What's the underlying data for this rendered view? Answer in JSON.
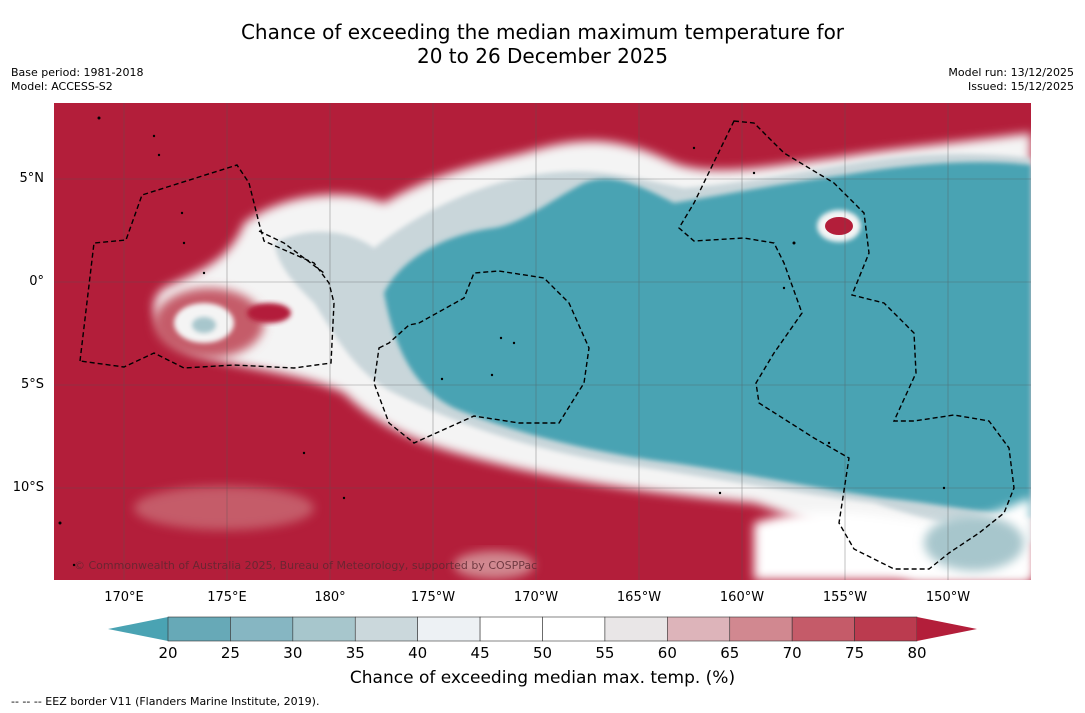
{
  "title": {
    "line1": "Chance of exceeding the median maximum temperature for",
    "line2": "20 to 26 December 2025"
  },
  "meta": {
    "base_period": "Base period: 1981-2018",
    "model": "Model: ACCESS-S2",
    "model_run": "Model run: 13/12/2025",
    "issued": "Issued: 15/12/2025"
  },
  "latitude_labels": [
    "5°N",
    "0°",
    "5°S",
    "10°S"
  ],
  "longitude_labels": [
    "170°E",
    "175°E",
    "180°",
    "175°W",
    "170°W",
    "165°W",
    "160°W",
    "155°W",
    "150°W"
  ],
  "copyright": "© Commonwealth of Australia 2025, Bureau of Meteorology, supported by COSPPac",
  "colorbar": {
    "ticks": [
      "20",
      "25",
      "30",
      "35",
      "40",
      "45",
      "50",
      "55",
      "60",
      "65",
      "70",
      "75",
      "80"
    ],
    "label": "Chance of exceeding median max. temp. (%)",
    "colors": [
      "#4aa3b3",
      "#67a9b7",
      "#86b6c2",
      "#a7c6cc",
      "#cbd8dc",
      "#edf1f4",
      "#ffffff",
      "#ffffff",
      "#e9e6e7",
      "#ddb4ba",
      "#d18890",
      "#c55b69",
      "#bb3b4f",
      "#b31e3a"
    ]
  },
  "footnote": "--  --  -- EEZ border V11 (Flanders Marine Institute, 2019)."
}
